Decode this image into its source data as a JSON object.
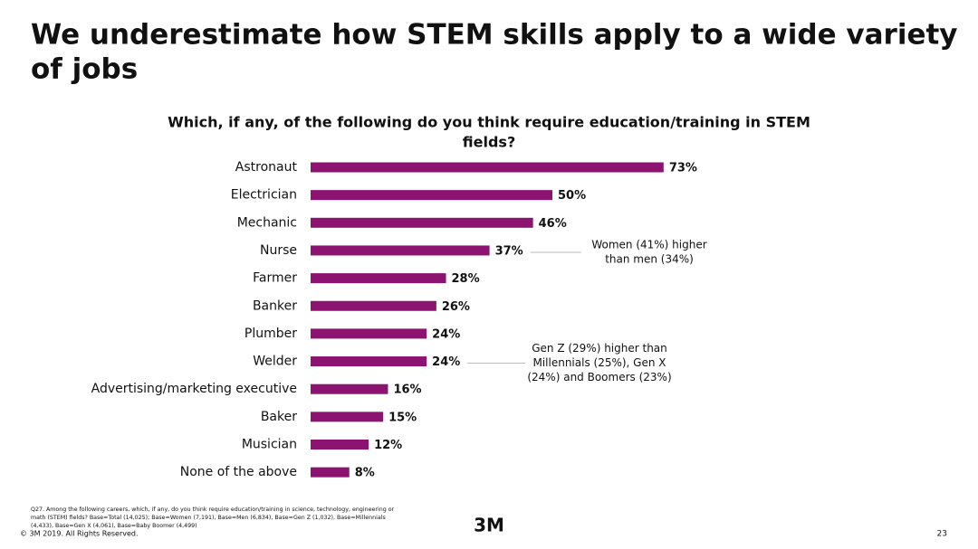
{
  "slide": {
    "heading": [
      "We underestimate how STEM skills apply to a wide variety",
      "of jobs"
    ],
    "footnote": [
      "Q27. Among the following careers, which, if any, do you think require education/training in science, technology, engineering or",
      "math (STEM) fields? Base=Total (14,025); Base=Women (7,191), Base=Men (6,834), Base=Gen Z (1,032), Base=Millennials",
      "(4,433), Base=Gen X (4,061), Base=Baby Boomer (4,499)"
    ],
    "copyright": "© 3M 2019.   All Rights Reserved.",
    "logo": "3M",
    "page_number": "23"
  },
  "chart_data": {
    "type": "bar",
    "orientation": "horizontal",
    "title": [
      "Which, if any, of the following do you think require education/training in STEM",
      "fields?"
    ],
    "categories": [
      "Astronaut",
      "Electrician",
      "Mechanic",
      "Nurse",
      "Farmer",
      "Banker",
      "Plumber",
      "Welder",
      "Advertising/marketing executive",
      "Baker",
      "Musician",
      "None of the above"
    ],
    "values": [
      73,
      50,
      46,
      37,
      28,
      26,
      24,
      24,
      16,
      15,
      12,
      8
    ],
    "value_labels": [
      "73%",
      "50%",
      "46%",
      "37%",
      "28%",
      "26%",
      "24%",
      "24%",
      "16%",
      "15%",
      "12%",
      "8%"
    ],
    "color": "#8c1470",
    "annotations": [
      {
        "category": 3,
        "lines": [
          "Women (41%) higher",
          "than men (34%)"
        ]
      },
      {
        "category": 7,
        "lines": [
          "Gen Z (29%) higher than",
          "Millennials (25%), Gen X",
          "(24%) and Boomers (23%)"
        ]
      }
    ]
  }
}
